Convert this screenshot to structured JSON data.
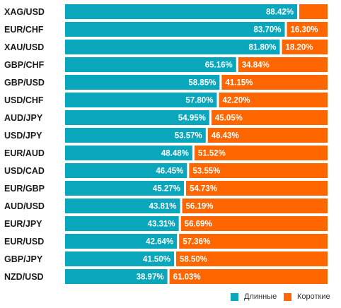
{
  "chart_data": {
    "type": "bar",
    "stacked": true,
    "orientation": "horizontal",
    "categories": [
      "XAG/USD",
      "EUR/CHF",
      "XAU/USD",
      "GBP/CHF",
      "GBP/USD",
      "USD/CHF",
      "AUD/JPY",
      "USD/JPY",
      "EUR/AUD",
      "USD/CAD",
      "EUR/GBP",
      "AUD/USD",
      "EUR/JPY",
      "EUR/USD",
      "GBP/JPY",
      "NZD/USD"
    ],
    "series": [
      {
        "name": "Длинные",
        "color": "#0aa6bc",
        "values": [
          88.42,
          83.7,
          81.8,
          65.16,
          58.85,
          57.8,
          54.95,
          53.57,
          48.48,
          46.45,
          45.27,
          43.81,
          43.31,
          42.64,
          41.5,
          38.97
        ],
        "labels": [
          "88.42%",
          "83.70%",
          "81.80%",
          "65.16%",
          "58.85%",
          "57.80%",
          "54.95%",
          "53.57%",
          "48.48%",
          "46.45%",
          "45.27%",
          "43.81%",
          "43.31%",
          "42.64%",
          "41.50%",
          "38.97%"
        ]
      },
      {
        "name": "Короткие",
        "color": "#ff6600",
        "values": [
          11.58,
          16.3,
          18.2,
          34.84,
          41.15,
          42.2,
          45.05,
          46.43,
          51.52,
          53.55,
          54.73,
          56.19,
          56.69,
          57.36,
          58.5,
          61.03
        ],
        "labels": [
          "",
          "16.30%",
          "18.20%",
          "34.84%",
          "41.15%",
          "42.20%",
          "45.05%",
          "46.43%",
          "51.52%",
          "53.55%",
          "54.73%",
          "56.19%",
          "56.69%",
          "57.36%",
          "58.50%",
          "61.03%"
        ]
      }
    ],
    "xlim": [
      0,
      100
    ],
    "grid": false,
    "legend": "bottom-right"
  }
}
